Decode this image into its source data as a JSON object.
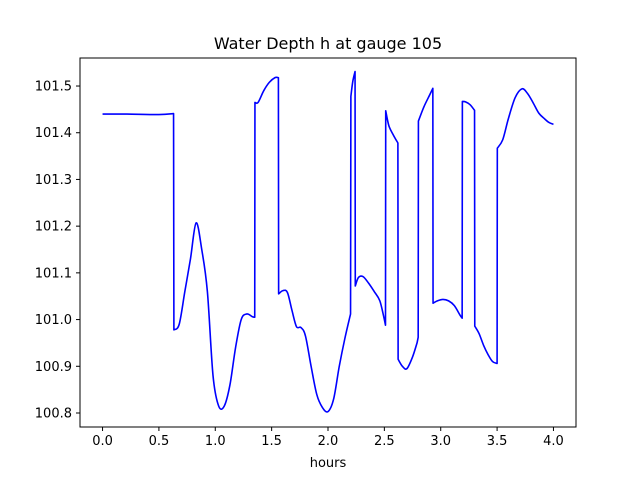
{
  "chart_data": {
    "type": "line",
    "title": "Water Depth h at gauge 105",
    "xlabel": "hours",
    "ylabel": "",
    "xlim": [
      -0.2,
      4.2
    ],
    "ylim": [
      100.77,
      101.56
    ],
    "grid": false,
    "x_ticks": [
      0.0,
      0.5,
      1.0,
      1.5,
      2.0,
      2.5,
      3.0,
      3.5,
      4.0
    ],
    "x_tick_labels": [
      "0.0",
      "0.5",
      "1.0",
      "1.5",
      "2.0",
      "2.5",
      "3.0",
      "3.5",
      "4.0"
    ],
    "y_ticks": [
      100.8,
      100.9,
      101.0,
      101.1,
      101.2,
      101.3,
      101.4,
      101.5
    ],
    "y_tick_labels": [
      "100.8",
      "100.9",
      "101.0",
      "101.1",
      "101.2",
      "101.3",
      "101.4",
      "101.5"
    ],
    "series": [
      {
        "color": "#0000ff",
        "x": [
          0.0,
          0.2,
          0.5,
          0.63,
          0.633,
          0.68,
          0.73,
          0.78,
          0.83,
          0.88,
          0.93,
          0.98,
          1.03,
          1.08,
          1.13,
          1.18,
          1.23,
          1.28,
          1.33,
          1.35,
          1.352,
          1.38,
          1.43,
          1.48,
          1.53,
          1.56,
          1.562,
          1.6,
          1.64,
          1.68,
          1.72,
          1.76,
          1.8,
          1.85,
          1.9,
          1.95,
          2.0,
          2.05,
          2.1,
          2.15,
          2.2,
          2.203,
          2.22,
          2.24,
          2.242,
          2.27,
          2.31,
          2.36,
          2.41,
          2.46,
          2.5,
          2.51,
          2.512,
          2.54,
          2.58,
          2.62,
          2.622,
          2.66,
          2.7,
          2.75,
          2.79,
          2.8,
          2.802,
          2.85,
          2.9,
          2.93,
          2.932,
          2.97,
          3.02,
          3.07,
          3.12,
          3.17,
          3.19,
          3.192,
          3.22,
          3.26,
          3.3,
          3.302,
          3.34,
          3.38,
          3.42,
          3.46,
          3.5,
          3.502,
          3.55,
          3.6,
          3.66,
          3.72,
          3.77,
          3.82,
          3.87,
          3.92,
          3.96,
          4.0
        ],
        "y": [
          101.44,
          101.44,
          101.439,
          101.441,
          100.978,
          100.99,
          101.06,
          101.13,
          101.207,
          101.15,
          101.06,
          100.88,
          100.815,
          100.815,
          100.86,
          100.94,
          101.0,
          101.012,
          101.006,
          101.005,
          101.465,
          101.465,
          101.49,
          101.508,
          101.518,
          101.518,
          101.055,
          101.062,
          101.058,
          101.02,
          100.985,
          100.983,
          100.965,
          100.9,
          100.84,
          100.812,
          100.803,
          100.83,
          100.9,
          100.96,
          101.012,
          101.478,
          101.51,
          101.531,
          101.072,
          101.09,
          101.092,
          101.078,
          101.06,
          101.04,
          101.0,
          100.988,
          101.447,
          101.415,
          101.395,
          101.378,
          100.915,
          100.9,
          100.895,
          100.92,
          100.95,
          100.962,
          101.425,
          101.455,
          101.48,
          101.495,
          101.035,
          101.04,
          101.043,
          101.04,
          101.03,
          101.01,
          101.003,
          101.467,
          101.466,
          101.46,
          101.448,
          100.986,
          100.97,
          100.945,
          100.925,
          100.91,
          100.906,
          101.367,
          101.385,
          101.43,
          101.475,
          101.494,
          101.484,
          101.464,
          101.442,
          101.43,
          101.422,
          101.418
        ]
      }
    ]
  }
}
